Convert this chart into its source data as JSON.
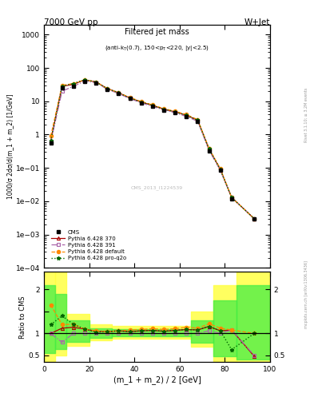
{
  "title_left": "7000 GeV pp",
  "title_right": "W+Jet",
  "plot_title": "Filtered jet mass",
  "plot_subtitle": "(anti-k_{T}(0.7), 150<p_{T}<220, |y|<2.5)",
  "watermark": "CMS_2013_I1224539",
  "ylabel_main": "1000/σ 2dσ/d(m_1 + m_2) [1/GeV]",
  "ylabel_ratio": "Ratio to CMS",
  "xlabel": "(m_1 + m_2) / 2 [GeV]",
  "x_data": [
    3,
    8,
    13,
    18,
    23,
    28,
    33,
    38,
    43,
    48,
    53,
    58,
    63,
    68,
    73,
    78,
    83,
    93
  ],
  "cms_data": [
    0.55,
    25,
    28,
    40,
    36,
    23,
    17,
    12,
    9.0,
    7.0,
    5.5,
    4.5,
    3.5,
    2.5,
    0.32,
    0.085,
    0.012,
    0.003
  ],
  "py370_data": [
    0.65,
    28,
    32,
    44,
    38,
    24,
    18,
    12.5,
    9.5,
    7.5,
    5.8,
    4.8,
    3.8,
    2.7,
    0.37,
    0.09,
    0.013,
    0.003
  ],
  "py391_data": [
    0.6,
    20,
    28,
    40,
    36,
    23,
    17,
    12,
    9.0,
    7.0,
    5.5,
    4.5,
    3.5,
    2.5,
    0.34,
    0.085,
    0.013,
    0.003
  ],
  "pydef_data": [
    0.9,
    30,
    34,
    44,
    38,
    24,
    18,
    13,
    9.8,
    7.8,
    6.0,
    5.0,
    4.0,
    2.8,
    0.39,
    0.095,
    0.013,
    0.003
  ],
  "pyq2o_data": [
    0.65,
    28,
    34,
    44,
    38,
    24,
    18,
    12.5,
    9.5,
    7.5,
    5.8,
    4.8,
    3.8,
    2.7,
    0.37,
    0.09,
    0.013,
    0.003
  ],
  "color_cms": "#000000",
  "color_370": "#aa0000",
  "color_391": "#aa66aa",
  "color_def": "#ff8800",
  "color_q2o": "#006600",
  "rivet_text": "Rivet 3.1.10; ≥ 3.2M events",
  "mcplots_text": "mcplots.cern.ch [arXiv:1306.3436]"
}
